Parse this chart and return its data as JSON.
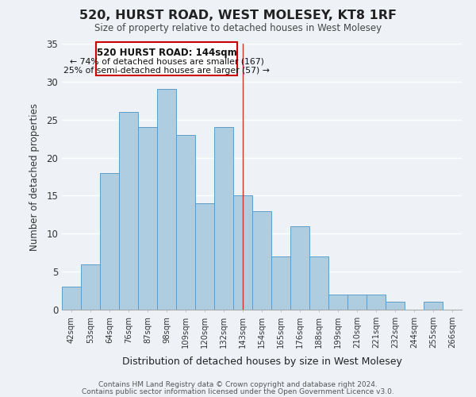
{
  "title": "520, HURST ROAD, WEST MOLESEY, KT8 1RF",
  "subtitle": "Size of property relative to detached houses in West Molesey",
  "xlabel": "Distribution of detached houses by size in West Molesey",
  "ylabel": "Number of detached properties",
  "bar_labels": [
    "42sqm",
    "53sqm",
    "64sqm",
    "76sqm",
    "87sqm",
    "98sqm",
    "109sqm",
    "120sqm",
    "132sqm",
    "143sqm",
    "154sqm",
    "165sqm",
    "176sqm",
    "188sqm",
    "199sqm",
    "210sqm",
    "221sqm",
    "232sqm",
    "244sqm",
    "255sqm",
    "266sqm"
  ],
  "bar_values": [
    3,
    6,
    18,
    26,
    24,
    29,
    23,
    14,
    24,
    15,
    13,
    7,
    11,
    7,
    2,
    2,
    2,
    1,
    0,
    1,
    0
  ],
  "bar_color": "#aecde0",
  "bar_edge_color": "#5b9ec9",
  "annotation_title": "520 HURST ROAD: 144sqm",
  "annotation_line1": "← 74% of detached houses are smaller (167)",
  "annotation_line2": "25% of semi-detached houses are larger (57) →",
  "annotation_box_color": "#ffffff",
  "annotation_box_edge": "#cc0000",
  "vline_index": 9,
  "ylim": [
    0,
    35
  ],
  "yticks": [
    0,
    5,
    10,
    15,
    20,
    25,
    30,
    35
  ],
  "footer_line1": "Contains HM Land Registry data © Crown copyright and database right 2024.",
  "footer_line2": "Contains public sector information licensed under the Open Government Licence v3.0.",
  "bg_color": "#eef2f7",
  "grid_color": "#ffffff"
}
